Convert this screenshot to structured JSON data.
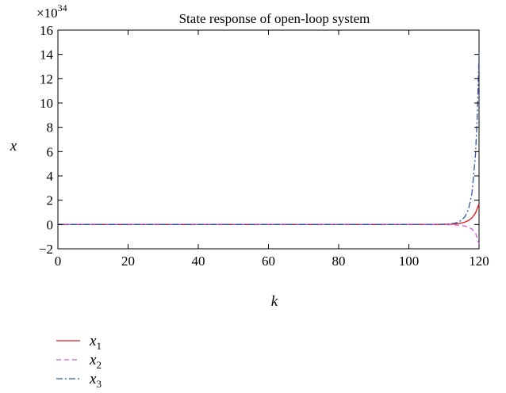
{
  "chart_data": {
    "type": "line",
    "title": "State response of open-loop system",
    "xlabel": "k",
    "ylabel": "x",
    "y_multiplier": "×10",
    "y_exponent": "34",
    "xlim": [
      0,
      120
    ],
    "ylim": [
      -2,
      16
    ],
    "x_ticks": [
      "0",
      "20",
      "40",
      "60",
      "80",
      "100",
      "120"
    ],
    "y_ticks": [
      "−2",
      "0",
      "2",
      "4",
      "6",
      "8",
      "10",
      "12",
      "14",
      "16"
    ],
    "grid": false,
    "legend_position": "below",
    "series": [
      {
        "name": "x1",
        "label_main": "x",
        "label_sub": "1",
        "color": "#e8141c",
        "dash": "solid",
        "x": [
          0,
          100,
          110,
          112,
          113,
          114,
          115,
          116,
          117,
          118,
          119,
          120
        ],
        "y": [
          0,
          0,
          0.01,
          0.02,
          0.04,
          0.07,
          0.12,
          0.2,
          0.33,
          0.55,
          0.95,
          1.7
        ]
      },
      {
        "name": "x2",
        "label_main": "x",
        "label_sub": "2",
        "color": "#cc55cc",
        "dash": "dashed",
        "x": [
          0,
          100,
          110,
          112,
          113,
          114,
          115,
          116,
          117,
          118,
          119,
          120
        ],
        "y": [
          0,
          0,
          -0.01,
          -0.02,
          -0.03,
          -0.05,
          -0.08,
          -0.13,
          -0.22,
          -0.38,
          -0.7,
          -1.6
        ]
      },
      {
        "name": "x3",
        "label_main": "x",
        "label_sub": "3",
        "color": "#2e5aa8",
        "dash": "dashdot",
        "x": [
          0,
          100,
          108,
          110,
          112,
          113,
          114,
          115,
          116,
          117,
          118,
          119,
          119.5,
          120
        ],
        "y": [
          0,
          0,
          0.01,
          0.03,
          0.06,
          0.1,
          0.19,
          0.35,
          0.65,
          1.25,
          2.6,
          5.8,
          9.0,
          14.1
        ]
      }
    ]
  }
}
